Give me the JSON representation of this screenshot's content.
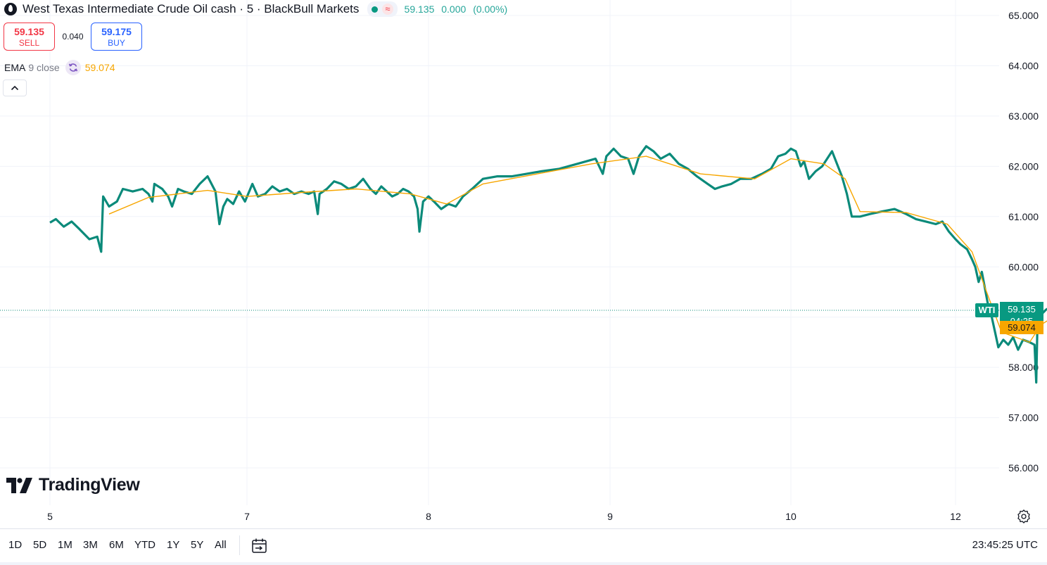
{
  "header": {
    "title": "West Texas Intermediate Crude Oil cash · 5 · BlackBull Markets",
    "delay_badge": "≈",
    "last": "59.135",
    "change": "0.000",
    "change_pct": "(0.00%)"
  },
  "trade": {
    "sell_price": "59.135",
    "sell_label": "SELL",
    "spread": "0.040",
    "buy_price": "59.175",
    "buy_label": "BUY"
  },
  "indicator": {
    "name": "EMA",
    "params": "9 close",
    "value": "59.074"
  },
  "price_tags": {
    "symbol": "WTI",
    "last": "59.135",
    "countdown": "04:35",
    "ema": "59.074"
  },
  "logo_text": "TradingView",
  "bottom_bar": {
    "ranges": [
      "1D",
      "5D",
      "1M",
      "3M",
      "6M",
      "YTD",
      "1Y",
      "5Y",
      "All"
    ],
    "clock": "23:45:25 UTC"
  },
  "colors": {
    "price_line": "#0b8a7a",
    "ema_line": "#f7a600",
    "last_tag": "#089981",
    "ema_tag": "#f7a600",
    "sell": "#f23645",
    "buy": "#2962ff"
  },
  "icons": {
    "symbol": "oil-drop-icon",
    "indicator": "refresh-icon",
    "collapse": "chevron-up-icon",
    "calendar": "calendar-range-icon",
    "settings": "gear-icon"
  },
  "chart_data": {
    "type": "line",
    "symbol": "WTI",
    "interval": "5",
    "y_axis": {
      "ticks": [
        "56.000",
        "57.000",
        "58.000",
        "59.000",
        "60.000",
        "61.000",
        "62.000",
        "63.000",
        "64.000",
        "65.000"
      ],
      "ylim": [
        55.5,
        65.3
      ]
    },
    "x_axis": {
      "ticks": [
        "5",
        "7",
        "8",
        "9",
        "10",
        "12"
      ]
    },
    "grid": true,
    "last_price_line": 59.135,
    "series": [
      {
        "name": "WTI",
        "role": "price",
        "points": [
          [
            0,
            60.88
          ],
          [
            0.03,
            60.95
          ],
          [
            0.07,
            60.8
          ],
          [
            0.11,
            60.9
          ],
          [
            0.15,
            60.75
          ],
          [
            0.2,
            60.55
          ],
          [
            0.24,
            60.6
          ],
          [
            0.26,
            60.3
          ],
          [
            0.27,
            61.4
          ],
          [
            0.3,
            61.2
          ],
          [
            0.34,
            61.3
          ],
          [
            0.37,
            61.55
          ],
          [
            0.42,
            61.5
          ],
          [
            0.47,
            61.55
          ],
          [
            0.5,
            61.45
          ],
          [
            0.52,
            61.3
          ],
          [
            0.53,
            61.65
          ],
          [
            0.57,
            61.55
          ],
          [
            0.6,
            61.4
          ],
          [
            0.62,
            61.2
          ],
          [
            0.65,
            61.55
          ],
          [
            0.68,
            61.5
          ],
          [
            0.72,
            61.45
          ],
          [
            0.76,
            61.65
          ],
          [
            0.8,
            61.8
          ],
          [
            0.84,
            61.5
          ],
          [
            0.86,
            60.85
          ],
          [
            0.88,
            61.2
          ],
          [
            0.9,
            61.35
          ],
          [
            0.93,
            61.25
          ],
          [
            0.96,
            61.5
          ],
          [
            0.99,
            61.3
          ],
          [
            1.03,
            61.65
          ],
          [
            1.06,
            61.4
          ],
          [
            1.1,
            61.45
          ],
          [
            1.14,
            61.6
          ],
          [
            1.18,
            61.5
          ],
          [
            1.22,
            61.55
          ],
          [
            1.26,
            61.45
          ],
          [
            1.3,
            61.5
          ],
          [
            1.34,
            61.45
          ],
          [
            1.37,
            61.5
          ],
          [
            1.39,
            61.05
          ],
          [
            1.4,
            61.45
          ],
          [
            1.44,
            61.55
          ],
          [
            1.48,
            61.7
          ],
          [
            1.52,
            61.65
          ],
          [
            1.56,
            61.55
          ],
          [
            1.6,
            61.6
          ],
          [
            1.64,
            61.75
          ],
          [
            1.68,
            61.55
          ],
          [
            1.71,
            61.45
          ],
          [
            1.74,
            61.6
          ],
          [
            1.77,
            61.5
          ],
          [
            1.8,
            61.4
          ],
          [
            1.83,
            61.45
          ],
          [
            1.86,
            61.55
          ],
          [
            1.89,
            61.5
          ],
          [
            1.92,
            61.4
          ],
          [
            1.94,
            61.15
          ],
          [
            1.95,
            60.7
          ],
          [
            1.97,
            61.3
          ],
          [
            2.0,
            61.4
          ],
          [
            2.03,
            61.3
          ],
          [
            2.07,
            61.15
          ],
          [
            2.11,
            61.25
          ],
          [
            2.15,
            61.2
          ],
          [
            2.19,
            61.4
          ],
          [
            2.24,
            61.55
          ],
          [
            2.3,
            61.75
          ],
          [
            2.38,
            61.8
          ],
          [
            2.46,
            61.8
          ],
          [
            2.54,
            61.85
          ],
          [
            2.62,
            61.9
          ],
          [
            2.72,
            61.95
          ],
          [
            2.82,
            62.05
          ],
          [
            2.92,
            62.15
          ],
          [
            2.96,
            61.85
          ],
          [
            2.98,
            62.2
          ],
          [
            3.02,
            62.35
          ],
          [
            3.06,
            62.2
          ],
          [
            3.1,
            62.15
          ],
          [
            3.13,
            61.85
          ],
          [
            3.16,
            62.2
          ],
          [
            3.2,
            62.4
          ],
          [
            3.24,
            62.3
          ],
          [
            3.28,
            62.15
          ],
          [
            3.33,
            62.25
          ],
          [
            3.38,
            62.05
          ],
          [
            3.43,
            61.95
          ],
          [
            3.48,
            61.8
          ],
          [
            3.54,
            61.65
          ],
          [
            3.58,
            61.55
          ],
          [
            3.62,
            61.6
          ],
          [
            3.67,
            61.65
          ],
          [
            3.72,
            61.75
          ],
          [
            3.78,
            61.75
          ],
          [
            3.84,
            61.85
          ],
          [
            3.89,
            61.95
          ],
          [
            3.93,
            62.2
          ],
          [
            3.97,
            62.25
          ],
          [
            4.0,
            62.35
          ],
          [
            4.03,
            62.3
          ],
          [
            4.06,
            62.0
          ],
          [
            4.08,
            62.1
          ],
          [
            4.11,
            61.75
          ],
          [
            4.15,
            61.9
          ],
          [
            4.19,
            62.0
          ],
          [
            4.23,
            62.2
          ],
          [
            4.25,
            62.3
          ],
          [
            4.28,
            62.05
          ],
          [
            4.31,
            61.8
          ],
          [
            4.34,
            61.45
          ],
          [
            4.37,
            61.0
          ],
          [
            4.42,
            61.0
          ],
          [
            4.48,
            61.05
          ],
          [
            4.55,
            61.1
          ],
          [
            4.63,
            61.15
          ],
          [
            4.7,
            61.05
          ],
          [
            4.76,
            60.95
          ],
          [
            4.82,
            60.9
          ],
          [
            4.88,
            60.85
          ],
          [
            4.92,
            60.9
          ],
          [
            4.96,
            60.7
          ],
          [
            5.0,
            60.55
          ],
          [
            5.03,
            60.45
          ],
          [
            5.07,
            60.35
          ],
          [
            5.1,
            60.15
          ],
          [
            5.12,
            60.0
          ],
          [
            5.14,
            59.7
          ],
          [
            5.16,
            59.9
          ],
          [
            5.18,
            59.55
          ],
          [
            5.2,
            59.2
          ],
          [
            5.22,
            59.0
          ],
          [
            5.24,
            58.7
          ],
          [
            5.26,
            58.4
          ],
          [
            5.29,
            58.55
          ],
          [
            5.32,
            58.45
          ],
          [
            5.35,
            58.6
          ],
          [
            5.38,
            58.35
          ],
          [
            5.41,
            58.55
          ],
          [
            5.45,
            58.5
          ],
          [
            5.48,
            58.45
          ],
          [
            5.49,
            57.7
          ],
          [
            5.5,
            59.25
          ],
          [
            5.52,
            59.05
          ],
          [
            5.55,
            59.15
          ],
          [
            5.58,
            59.2
          ],
          [
            5.61,
            59.15
          ],
          [
            5.63,
            59.135
          ]
        ]
      },
      {
        "name": "EMA",
        "role": "ema",
        "points": [
          [
            0.3,
            61.05
          ],
          [
            0.5,
            61.38
          ],
          [
            0.8,
            61.52
          ],
          [
            1.0,
            61.4
          ],
          [
            1.3,
            61.48
          ],
          [
            1.6,
            61.55
          ],
          [
            1.9,
            61.45
          ],
          [
            2.1,
            61.25
          ],
          [
            2.3,
            61.65
          ],
          [
            2.6,
            61.85
          ],
          [
            2.9,
            62.05
          ],
          [
            3.2,
            62.2
          ],
          [
            3.5,
            61.85
          ],
          [
            3.8,
            61.75
          ],
          [
            4.0,
            62.15
          ],
          [
            4.2,
            62.05
          ],
          [
            4.33,
            61.75
          ],
          [
            4.42,
            61.1
          ],
          [
            4.7,
            61.08
          ],
          [
            4.95,
            60.85
          ],
          [
            5.1,
            60.3
          ],
          [
            5.2,
            59.4
          ],
          [
            5.28,
            58.7
          ],
          [
            5.45,
            58.5
          ],
          [
            5.52,
            58.85
          ],
          [
            5.63,
            59.074
          ]
        ]
      }
    ]
  }
}
